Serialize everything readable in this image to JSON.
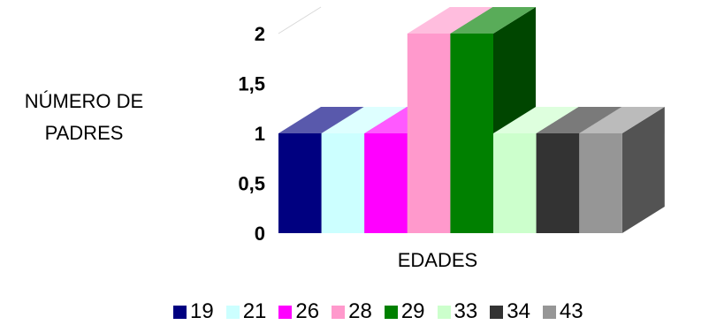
{
  "chart_data": {
    "type": "bar",
    "three_d": true,
    "title": "",
    "xlabel": "EDADES",
    "ylabel_lines": [
      "NÚMERO DE",
      "PADRES"
    ],
    "ylim": [
      0,
      2
    ],
    "yticks": [
      "0",
      "0,5",
      "1",
      "1,5",
      "2"
    ],
    "ytick_values": [
      0,
      0.5,
      1,
      1.5,
      2
    ],
    "legend_position": "bottom",
    "series": [
      {
        "name": "19",
        "value": 1,
        "color": "#000080"
      },
      {
        "name": "21",
        "value": 1,
        "color": "#ccffff"
      },
      {
        "name": "26",
        "value": 1,
        "color": "#ff00ff"
      },
      {
        "name": "28",
        "value": 2,
        "color": "#ff99cc"
      },
      {
        "name": "29",
        "value": 2,
        "color": "#008000"
      },
      {
        "name": "33",
        "value": 1,
        "color": "#ccffcc"
      },
      {
        "name": "34",
        "value": 1,
        "color": "#333333"
      },
      {
        "name": "43",
        "value": 1,
        "color": "#969696"
      }
    ]
  }
}
